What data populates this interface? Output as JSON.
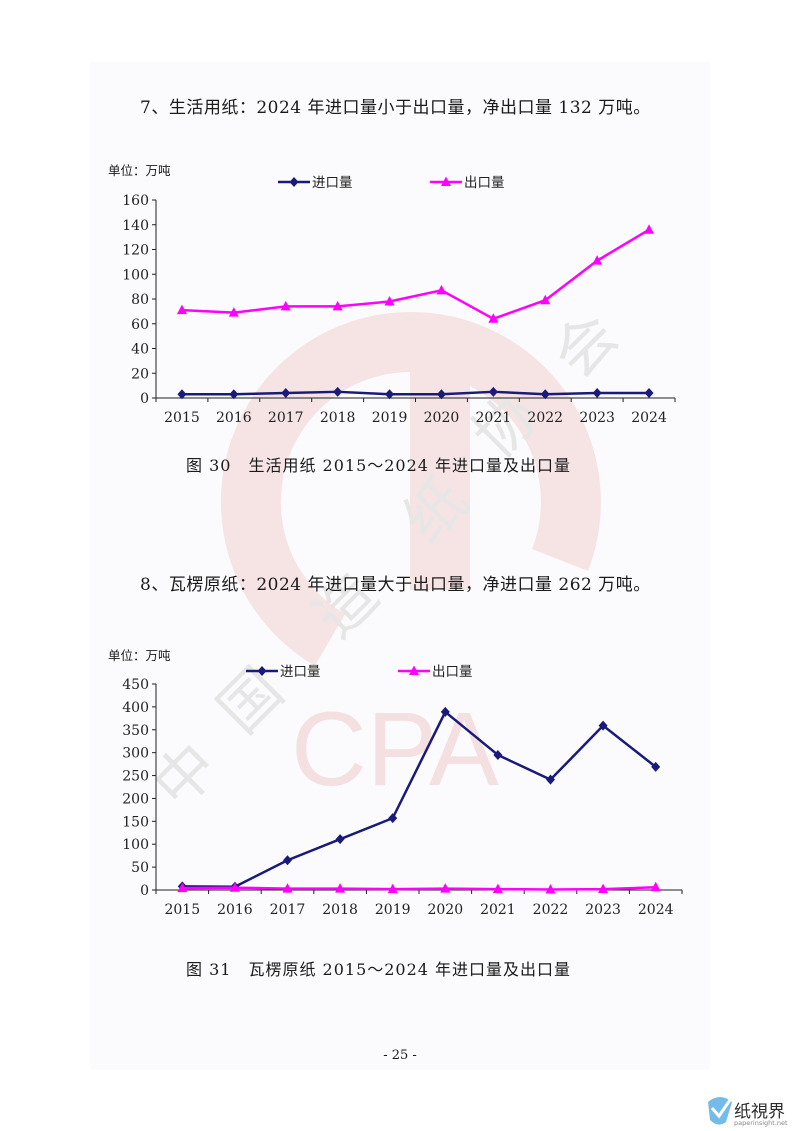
{
  "section7": {
    "heading": "7、生活用纸：2024 年进口量小于出口量，净出口量 132 万吨。",
    "unit": "单位：万吨",
    "caption": "图 30　生活用纸 2015～2024 年进口量及出口量"
  },
  "section8": {
    "heading": "8、瓦楞原纸：2024 年进口量大于出口量，净进口量 262 万吨。",
    "unit": "单位：万吨",
    "caption": "图 31　瓦楞原纸 2015～2024 年进口量及出口量"
  },
  "page_number": "- 25 -",
  "watermark": {
    "chars": [
      "中",
      "国",
      "造",
      "纸",
      "协",
      "会"
    ],
    "letters": "CPA"
  },
  "logo": {
    "name": "纸視界",
    "site": "paperinsight.net"
  },
  "colors": {
    "import": "#1a1a7a",
    "export": "#ff00ff",
    "watermark": "#f3d6d6"
  },
  "chart_data": [
    {
      "type": "line",
      "categories": [
        "2015",
        "2016",
        "2017",
        "2018",
        "2019",
        "2020",
        "2021",
        "2022",
        "2023",
        "2024"
      ],
      "series": [
        {
          "name": "进口量",
          "marker": "diamond",
          "values": [
            3,
            3,
            4,
            5,
            3,
            3,
            5,
            3,
            4,
            4
          ]
        },
        {
          "name": "出口量",
          "marker": "triangle",
          "values": [
            71,
            69,
            74,
            74,
            78,
            87,
            64,
            79,
            111,
            136
          ]
        }
      ],
      "ylim": [
        0,
        160
      ],
      "yticks": [
        0,
        20,
        40,
        60,
        80,
        100,
        120,
        140,
        160
      ],
      "legend": "top"
    },
    {
      "type": "line",
      "categories": [
        "2015",
        "2016",
        "2017",
        "2018",
        "2019",
        "2020",
        "2021",
        "2022",
        "2023",
        "2024"
      ],
      "series": [
        {
          "name": "进口量",
          "marker": "diamond",
          "values": [
            8,
            7,
            65,
            111,
            157,
            389,
            295,
            241,
            359,
            269
          ]
        },
        {
          "name": "出口量",
          "marker": "triangle",
          "values": [
            4,
            5,
            3,
            3,
            2,
            3,
            2,
            1,
            2,
            6
          ]
        }
      ],
      "ylim": [
        0,
        450
      ],
      "yticks": [
        0,
        50,
        100,
        150,
        200,
        250,
        300,
        350,
        400,
        450
      ],
      "legend": "top"
    }
  ]
}
